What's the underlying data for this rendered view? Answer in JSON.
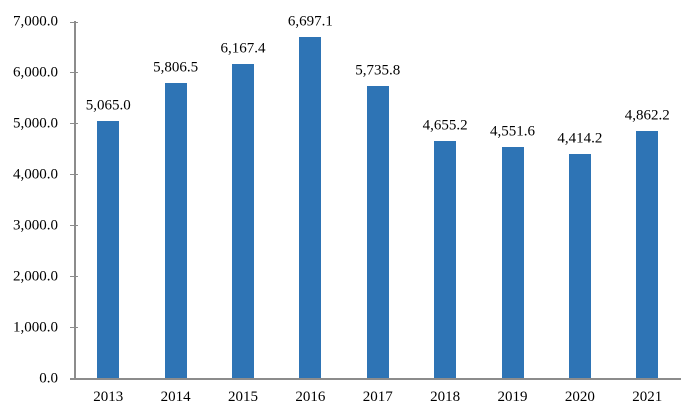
{
  "chart_data": {
    "type": "bar",
    "categories": [
      "2013",
      "2014",
      "2015",
      "2016",
      "2017",
      "2018",
      "2019",
      "2020",
      "2021"
    ],
    "values": [
      5065.0,
      5806.5,
      6167.4,
      6697.1,
      5735.8,
      4655.2,
      4551.6,
      4414.2,
      4862.2
    ],
    "value_labels": [
      "5,065.0",
      "5,806.5",
      "6,167.4",
      "6,697.1",
      "5,735.8",
      "4,655.2",
      "4,551.6",
      "4,414.2",
      "4,862.2"
    ],
    "y_ticks": [
      {
        "value": 0,
        "label": "0.0"
      },
      {
        "value": 1000,
        "label": "1,000.0"
      },
      {
        "value": 2000,
        "label": "2,000.0"
      },
      {
        "value": 3000,
        "label": "3,000.0"
      },
      {
        "value": 4000,
        "label": "4,000.0"
      },
      {
        "value": 5000,
        "label": "5,000.0"
      },
      {
        "value": 6000,
        "label": "6,000.0"
      },
      {
        "value": 7000,
        "label": "7,000.0"
      }
    ],
    "ylim": [
      0,
      7000
    ],
    "xlabel": "",
    "ylabel": "",
    "title": "",
    "grid": false,
    "legend": false,
    "bar_color": "#2E74B5",
    "axis_color": "#8C8C8C",
    "label_color": "#000000",
    "background": "#FFFFFF"
  }
}
